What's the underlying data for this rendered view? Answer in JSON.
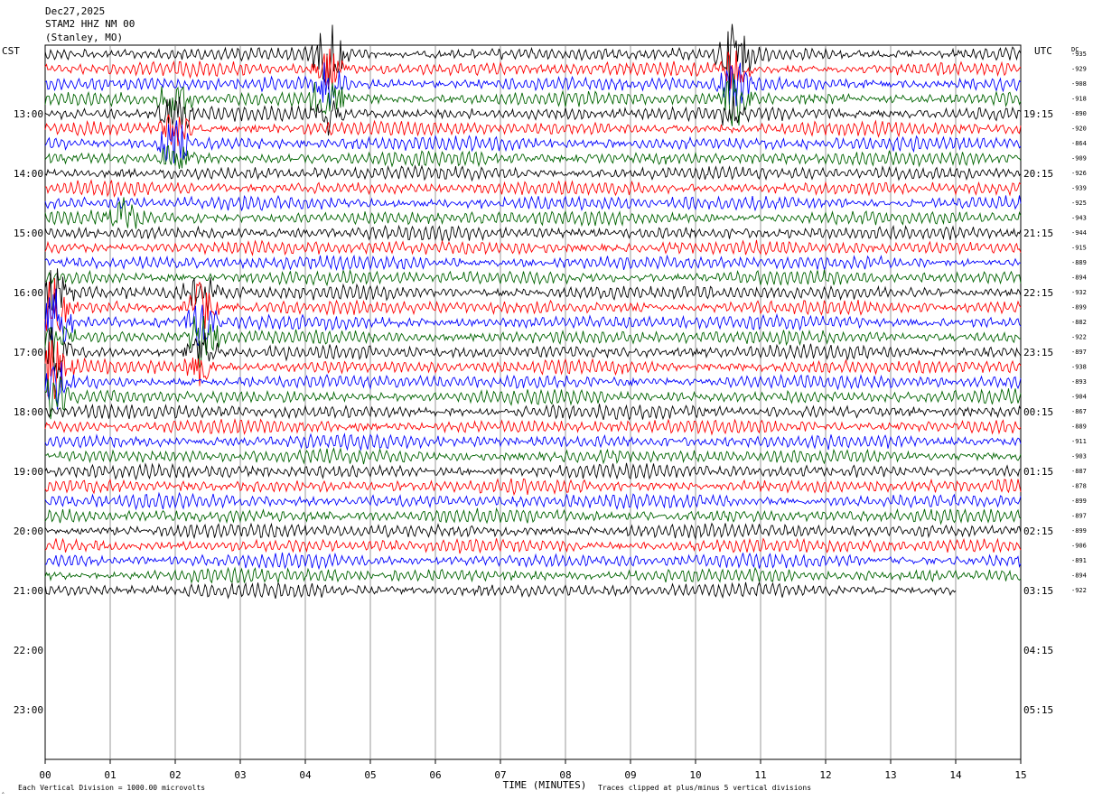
{
  "header": {
    "date": "Dec27,2025",
    "station": "STAM2 HHZ NM 00",
    "location": "(Stanley, MO)"
  },
  "labels": {
    "left_timezone": "CST",
    "right_timezone": "UTC",
    "dc_label": "DC",
    "x_axis_title": "TIME (MINUTES)",
    "footer_left_mark": "‸",
    "footer_scale": "Each Vertical Division = 1000.00 microvolts",
    "footer_clip": "Traces clipped at plus/minus 5 vertical divisions"
  },
  "colors": {
    "trace_cycle": [
      "#000000",
      "#ff0000",
      "#0000ff",
      "#006400"
    ],
    "grid": "#808080",
    "frame": "#000000",
    "text": "#000000"
  },
  "chart_data": {
    "type": "line",
    "title": "STAM2 HHZ NM 00",
    "xlabel": "TIME (MINUTES)",
    "x_ticks": [
      "00",
      "01",
      "02",
      "03",
      "04",
      "05",
      "06",
      "07",
      "08",
      "09",
      "10",
      "11",
      "12",
      "13",
      "14",
      "15"
    ],
    "xlim": [
      0,
      15
    ],
    "left_time_labels": [
      "13:00",
      "14:00",
      "15:00",
      "16:00",
      "17:00",
      "18:00",
      "19:00",
      "20:00",
      "21:00",
      "22:00",
      "23:00"
    ],
    "right_time_labels": [
      "19:15",
      "20:15",
      "21:15",
      "22:15",
      "23:15",
      "00:15",
      "01:15",
      "02:15",
      "03:15",
      "04:15",
      "05:15"
    ],
    "dc_offsets": [
      -935,
      -929,
      -908,
      -918,
      -890,
      -920,
      -864,
      -909,
      -926,
      -939,
      -925,
      -943,
      -944,
      -915,
      -889,
      -894,
      -932,
      -899,
      -882,
      -922,
      -897,
      -938,
      -893,
      -904,
      -867,
      -889,
      -911,
      -903,
      -887,
      -878,
      -899,
      -897,
      -899,
      -906,
      -891,
      -894,
      -922
    ],
    "rows_per_hour": 4,
    "minutes_per_row": 15,
    "last_row_end_minute": 14.0,
    "grid": true,
    "events": [
      {
        "row": 0,
        "minute": 4.35,
        "amplitude": 2.6
      },
      {
        "row": 1,
        "minute": 4.35,
        "amplitude": 1.6
      },
      {
        "row": 2,
        "minute": 4.35,
        "amplitude": 1.6
      },
      {
        "row": 3,
        "minute": 4.35,
        "amplitude": 2.2
      },
      {
        "row": 4,
        "minute": 4.35,
        "amplitude": 1.2
      },
      {
        "row": 0,
        "minute": 10.6,
        "amplitude": 2.6
      },
      {
        "row": 1,
        "minute": 10.6,
        "amplitude": 1.6
      },
      {
        "row": 2,
        "minute": 10.6,
        "amplitude": 1.6
      },
      {
        "row": 3,
        "minute": 10.6,
        "amplitude": 2.0
      },
      {
        "row": 4,
        "minute": 10.6,
        "amplitude": 1.4
      },
      {
        "row": 3,
        "minute": 2.0,
        "amplitude": 1.4
      },
      {
        "row": 4,
        "minute": 2.0,
        "amplitude": 1.6
      },
      {
        "row": 5,
        "minute": 2.0,
        "amplitude": 1.4
      },
      {
        "row": 6,
        "minute": 2.0,
        "amplitude": 1.8
      },
      {
        "row": 7,
        "minute": 2.0,
        "amplitude": 1.2
      },
      {
        "row": 11,
        "minute": 1.2,
        "amplitude": 1.3
      },
      {
        "row": 16,
        "minute": 2.4,
        "amplitude": 1.5
      },
      {
        "row": 17,
        "minute": 2.4,
        "amplitude": 1.8
      },
      {
        "row": 18,
        "minute": 2.4,
        "amplitude": 2.0
      },
      {
        "row": 19,
        "minute": 2.4,
        "amplitude": 2.2
      },
      {
        "row": 20,
        "minute": 2.4,
        "amplitude": 1.6
      },
      {
        "row": 21,
        "minute": 2.4,
        "amplitude": 1.3
      },
      {
        "row": 16,
        "minute": 0.15,
        "amplitude": 1.8
      },
      {
        "row": 17,
        "minute": 0.15,
        "amplitude": 2.2
      },
      {
        "row": 18,
        "minute": 0.15,
        "amplitude": 2.4
      },
      {
        "row": 19,
        "minute": 0.15,
        "amplitude": 2.0
      },
      {
        "row": 20,
        "minute": 0.15,
        "amplitude": 2.4
      },
      {
        "row": 21,
        "minute": 0.15,
        "amplitude": 2.4
      },
      {
        "row": 22,
        "minute": 0.15,
        "amplitude": 1.8
      },
      {
        "row": 23,
        "minute": 0.15,
        "amplitude": 1.4
      }
    ]
  }
}
